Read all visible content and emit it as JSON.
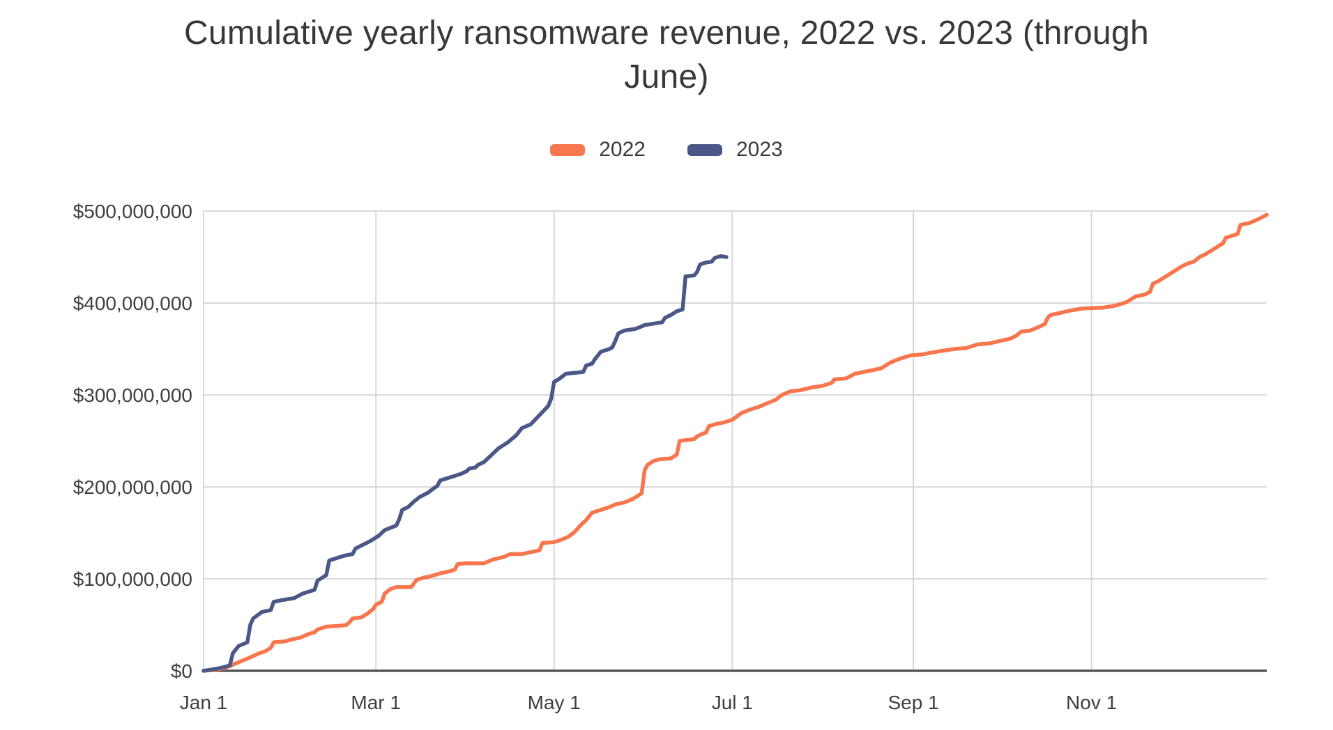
{
  "title": {
    "line1": "Cumulative yearly ransomware revenue, 2022 vs. 2023 (through",
    "line2": "June)"
  },
  "legend": [
    {
      "label": "2022",
      "color": "#f8764d"
    },
    {
      "label": "2023",
      "color": "#4a5787"
    }
  ],
  "colors": {
    "background": "#ffffff",
    "gridline": "#d9d9d9",
    "baseline": "#565656",
    "text": "#3f3f3f",
    "series_2022": "#f8764d",
    "series_2023": "#4a5787"
  },
  "chart_data": {
    "type": "line",
    "title": "Cumulative yearly ransomware revenue, 2022 vs. 2023 (through June)",
    "xlabel": "",
    "ylabel": "",
    "unit": "USD millions",
    "grid": true,
    "legend_position": "top",
    "x_axis": {
      "note": "day of year, Jan 1 = 1, Dec 31 = 365",
      "range_days": [
        1,
        365
      ],
      "ticks": [
        {
          "label": "Jan 1",
          "day": 1
        },
        {
          "label": "Mar 1",
          "day": 60
        },
        {
          "label": "May 1",
          "day": 121
        },
        {
          "label": "Jul 1",
          "day": 182
        },
        {
          "label": "Sep 1",
          "day": 244
        },
        {
          "label": "Nov 1",
          "day": 305
        }
      ]
    },
    "y_axis": {
      "range_millions": [
        0,
        500
      ],
      "ticks": [
        {
          "label": "$0",
          "value_millions": 0
        },
        {
          "label": "$100,000,000",
          "value_millions": 100
        },
        {
          "label": "$200,000,000",
          "value_millions": 200
        },
        {
          "label": "$300,000,000",
          "value_millions": 300
        },
        {
          "label": "$400,000,000",
          "value_millions": 400
        },
        {
          "label": "$500,000,000",
          "value_millions": 500
        }
      ]
    },
    "series": [
      {
        "name": "2022",
        "color": "#f8764d",
        "ends": "Dec 31, ~$496M",
        "points_day_value_millions": [
          [
            1,
            0
          ],
          [
            5,
            1
          ],
          [
            8,
            3
          ],
          [
            10,
            5
          ],
          [
            12,
            8
          ],
          [
            15,
            12
          ],
          [
            18,
            16
          ],
          [
            20,
            19
          ],
          [
            22,
            21
          ],
          [
            24,
            25
          ],
          [
            25,
            31
          ],
          [
            29,
            32
          ],
          [
            31,
            34
          ],
          [
            34,
            36
          ],
          [
            37,
            40
          ],
          [
            39,
            42
          ],
          [
            40,
            45
          ],
          [
            43,
            48
          ],
          [
            48,
            49
          ],
          [
            50,
            50
          ],
          [
            51,
            53
          ],
          [
            52,
            57
          ],
          [
            55,
            58
          ],
          [
            57,
            62
          ],
          [
            59,
            67
          ],
          [
            60,
            72
          ],
          [
            62,
            75
          ],
          [
            63,
            84
          ],
          [
            65,
            89
          ],
          [
            67,
            91
          ],
          [
            72,
            91
          ],
          [
            74,
            99
          ],
          [
            76,
            101
          ],
          [
            79,
            103
          ],
          [
            82,
            106
          ],
          [
            85,
            108
          ],
          [
            87,
            110
          ],
          [
            88,
            116
          ],
          [
            91,
            117
          ],
          [
            97,
            117
          ],
          [
            100,
            121
          ],
          [
            104,
            124
          ],
          [
            106,
            127
          ],
          [
            110,
            127
          ],
          [
            113,
            129
          ],
          [
            116,
            131
          ],
          [
            117,
            139
          ],
          [
            121,
            140
          ],
          [
            123,
            142
          ],
          [
            126,
            146
          ],
          [
            128,
            151
          ],
          [
            130,
            158
          ],
          [
            132,
            164
          ],
          [
            134,
            172
          ],
          [
            137,
            175
          ],
          [
            140,
            178
          ],
          [
            142,
            181
          ],
          [
            145,
            183
          ],
          [
            148,
            187
          ],
          [
            151,
            193
          ],
          [
            152,
            218
          ],
          [
            153,
            224
          ],
          [
            155,
            228
          ],
          [
            157,
            230
          ],
          [
            161,
            231
          ],
          [
            163,
            235
          ],
          [
            164,
            250
          ],
          [
            169,
            252
          ],
          [
            170,
            255
          ],
          [
            172,
            258
          ],
          [
            173,
            259
          ],
          [
            174,
            266
          ],
          [
            176,
            268
          ],
          [
            179,
            270
          ],
          [
            182,
            273
          ],
          [
            185,
            280
          ],
          [
            188,
            284
          ],
          [
            191,
            287
          ],
          [
            194,
            291
          ],
          [
            197,
            295
          ],
          [
            199,
            300
          ],
          [
            202,
            304
          ],
          [
            205,
            305
          ],
          [
            209,
            308
          ],
          [
            213,
            310
          ],
          [
            216,
            313
          ],
          [
            217,
            317
          ],
          [
            221,
            318
          ],
          [
            224,
            323
          ],
          [
            227,
            325
          ],
          [
            230,
            327
          ],
          [
            233,
            329
          ],
          [
            236,
            335
          ],
          [
            239,
            339
          ],
          [
            243,
            343
          ],
          [
            247,
            344
          ],
          [
            250,
            346
          ],
          [
            254,
            348
          ],
          [
            258,
            350
          ],
          [
            262,
            351
          ],
          [
            266,
            355
          ],
          [
            270,
            356
          ],
          [
            274,
            359
          ],
          [
            277,
            361
          ],
          [
            279,
            364
          ],
          [
            281,
            369
          ],
          [
            284,
            370
          ],
          [
            287,
            374
          ],
          [
            289,
            377
          ],
          [
            290,
            384
          ],
          [
            291,
            387
          ],
          [
            294,
            389
          ],
          [
            298,
            392
          ],
          [
            302,
            394
          ],
          [
            309,
            395
          ],
          [
            313,
            397
          ],
          [
            317,
            401
          ],
          [
            320,
            407
          ],
          [
            323,
            409
          ],
          [
            325,
            412
          ],
          [
            326,
            421
          ],
          [
            328,
            424
          ],
          [
            330,
            428
          ],
          [
            332,
            432
          ],
          [
            334,
            436
          ],
          [
            336,
            440
          ],
          [
            338,
            443
          ],
          [
            340,
            445
          ],
          [
            342,
            450
          ],
          [
            344,
            453
          ],
          [
            346,
            457
          ],
          [
            348,
            461
          ],
          [
            350,
            465
          ],
          [
            351,
            471
          ],
          [
            353,
            473
          ],
          [
            355,
            475
          ],
          [
            356,
            485
          ],
          [
            359,
            487
          ],
          [
            362,
            491
          ],
          [
            365,
            496
          ]
        ]
      },
      {
        "name": "2023",
        "color": "#4a5787",
        "ends": "late June, ~$450M",
        "points_day_value_millions": [
          [
            1,
            0
          ],
          [
            5,
            2
          ],
          [
            8,
            4
          ],
          [
            10,
            6
          ],
          [
            11,
            19
          ],
          [
            13,
            27
          ],
          [
            16,
            31
          ],
          [
            17,
            50
          ],
          [
            18,
            57
          ],
          [
            21,
            64
          ],
          [
            24,
            66
          ],
          [
            25,
            75
          ],
          [
            28,
            77
          ],
          [
            32,
            79
          ],
          [
            35,
            84
          ],
          [
            39,
            88
          ],
          [
            40,
            98
          ],
          [
            43,
            104
          ],
          [
            44,
            120
          ],
          [
            49,
            125
          ],
          [
            52,
            127
          ],
          [
            53,
            133
          ],
          [
            58,
            141
          ],
          [
            61,
            147
          ],
          [
            63,
            153
          ],
          [
            67,
            158
          ],
          [
            68,
            165
          ],
          [
            69,
            175
          ],
          [
            71,
            178
          ],
          [
            73,
            184
          ],
          [
            75,
            189
          ],
          [
            78,
            194
          ],
          [
            80,
            199
          ],
          [
            81,
            201
          ],
          [
            82,
            207
          ],
          [
            84,
            209
          ],
          [
            86,
            211
          ],
          [
            89,
            214
          ],
          [
            91,
            217
          ],
          [
            92,
            220
          ],
          [
            94,
            221
          ],
          [
            95,
            224
          ],
          [
            97,
            227
          ],
          [
            99,
            233
          ],
          [
            102,
            242
          ],
          [
            105,
            248
          ],
          [
            108,
            256
          ],
          [
            110,
            264
          ],
          [
            113,
            268
          ],
          [
            116,
            278
          ],
          [
            119,
            288
          ],
          [
            120,
            296
          ],
          [
            121,
            314
          ],
          [
            123,
            318
          ],
          [
            125,
            323
          ],
          [
            131,
            325
          ],
          [
            132,
            332
          ],
          [
            134,
            334
          ],
          [
            135,
            339
          ],
          [
            137,
            347
          ],
          [
            140,
            350
          ],
          [
            141,
            352
          ],
          [
            142,
            359
          ],
          [
            143,
            367
          ],
          [
            145,
            370
          ],
          [
            149,
            372
          ],
          [
            152,
            376
          ],
          [
            158,
            379
          ],
          [
            159,
            384
          ],
          [
            161,
            387
          ],
          [
            163,
            391
          ],
          [
            165,
            393
          ],
          [
            166,
            429
          ],
          [
            169,
            430
          ],
          [
            170,
            434
          ],
          [
            171,
            442
          ],
          [
            173,
            444
          ],
          [
            175,
            445
          ],
          [
            176,
            449
          ],
          [
            178,
            451
          ],
          [
            180,
            450
          ]
        ]
      }
    ]
  }
}
